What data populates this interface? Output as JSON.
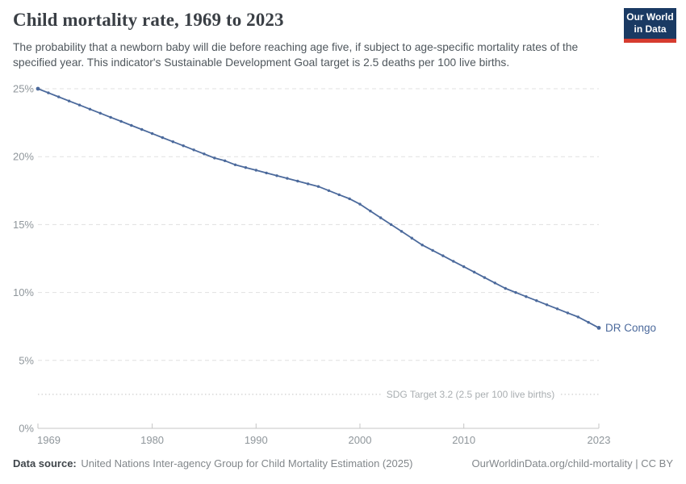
{
  "header": {
    "title": "Child mortality rate, 1969 to 2023",
    "subtitle": "The probability that a newborn baby will die before reaching age five, if subject to age-specific mortality rates of the specified year. This indicator's Sustainable Development Goal target is 2.5 deaths per 100 live births."
  },
  "logo": {
    "line1": "Our World",
    "line2": "in Data",
    "bg_color": "#1a3a63",
    "accent_color": "#d63b2f"
  },
  "chart_data": {
    "type": "line",
    "title": "Child mortality rate, 1969 to 2023",
    "x": [
      1969,
      1970,
      1971,
      1972,
      1973,
      1974,
      1975,
      1976,
      1977,
      1978,
      1979,
      1980,
      1981,
      1982,
      1983,
      1984,
      1985,
      1986,
      1987,
      1988,
      1989,
      1990,
      1991,
      1992,
      1993,
      1994,
      1995,
      1996,
      1997,
      1998,
      1999,
      2000,
      2001,
      2002,
      2003,
      2004,
      2005,
      2006,
      2007,
      2008,
      2009,
      2010,
      2011,
      2012,
      2013,
      2014,
      2015,
      2016,
      2017,
      2018,
      2019,
      2020,
      2021,
      2022,
      2023
    ],
    "series": [
      {
        "name": "DR Congo",
        "color": "#4c6a9c",
        "values": [
          25.0,
          24.7,
          24.4,
          24.1,
          23.8,
          23.5,
          23.2,
          22.9,
          22.6,
          22.3,
          22.0,
          21.7,
          21.4,
          21.1,
          20.8,
          20.5,
          20.2,
          19.9,
          19.7,
          19.4,
          19.2,
          19.0,
          18.8,
          18.6,
          18.4,
          18.2,
          18.0,
          17.8,
          17.5,
          17.2,
          16.9,
          16.5,
          16.0,
          15.5,
          15.0,
          14.5,
          14.0,
          13.5,
          13.1,
          12.7,
          12.3,
          11.9,
          11.5,
          11.1,
          10.7,
          10.3,
          10.0,
          9.7,
          9.4,
          9.1,
          8.8,
          8.5,
          8.2,
          7.8,
          7.4
        ]
      }
    ],
    "ylim": [
      0,
      25
    ],
    "y_tick_values": [
      0,
      5,
      10,
      15,
      20,
      25
    ],
    "y_tick_labels": [
      "0%",
      "5%",
      "10%",
      "15%",
      "20%",
      "25%"
    ],
    "x_tick_values": [
      1969,
      1980,
      1990,
      2000,
      2010,
      2023
    ],
    "x_tick_labels": [
      "1969",
      "1980",
      "1990",
      "2000",
      "2010",
      "2023"
    ],
    "grid": "horizontal-dashed",
    "legend_position": "end-of-line-label",
    "annotation_line": {
      "value": 2.5,
      "label": "SDG Target 3.2 (2.5 per 100 live births)",
      "style": "dotted"
    },
    "end_label": "DR Congo"
  },
  "footer": {
    "source_label": "Data source:",
    "source_text": "United Nations Inter-agency Group for Child Mortality Estimation (2025)",
    "attribution": "OurWorldinData.org/child-mortality | CC BY"
  },
  "colors": {
    "line": "#4c6a9c",
    "grid": "#e1e1e1",
    "axis": "#c6c6c6",
    "tick_label": "#8f969b",
    "sdg_line": "#cfcfcf",
    "sdg_label": "#a9aeb1"
  }
}
